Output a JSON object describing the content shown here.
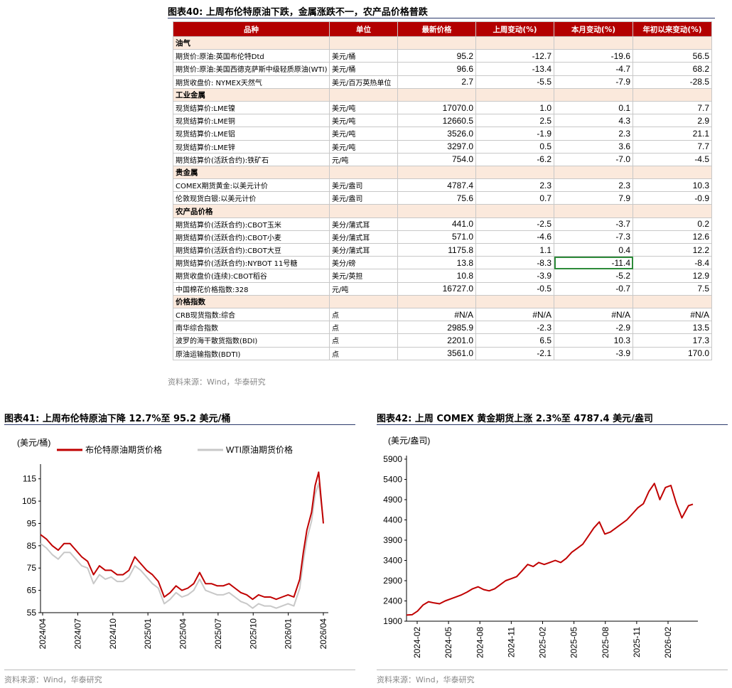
{
  "fig40": {
    "title": "图表40: 上周布伦特原油下跌，金属涨跌不一，农产品价格普跌",
    "headers": [
      "品种",
      "单位",
      "最新价格",
      "上周变动(%)",
      "本月变动(%)",
      "年初以来变动(%)"
    ],
    "sections": [
      {
        "name": "油气",
        "rows": [
          [
            "期货价:原油:英国布伦特Dtd",
            "美元/桶",
            "95.2",
            "-12.7",
            "-19.6",
            "56.5"
          ],
          [
            "期货价:原油:美国西德克萨斯中级轻质原油(WTI)",
            "美元/桶",
            "96.6",
            "-13.4",
            "-4.7",
            "68.2"
          ],
          [
            "期货收盘价: NYMEX天然气",
            "美元/百万英热单位",
            "2.7",
            "-5.5",
            "-7.9",
            "-28.5"
          ]
        ]
      },
      {
        "name": "工业金属",
        "rows": [
          [
            "现货结算价:LME镍",
            "美元/吨",
            "17070.0",
            "1.0",
            "0.1",
            "7.7"
          ],
          [
            "现货结算价:LME铜",
            "美元/吨",
            "12660.5",
            "2.5",
            "4.3",
            "2.9"
          ],
          [
            "现货结算价:LME铝",
            "美元/吨",
            "3526.0",
            "-1.9",
            "2.3",
            "21.1"
          ],
          [
            "现货结算价:LME锌",
            "美元/吨",
            "3297.0",
            "0.5",
            "3.6",
            "7.7"
          ],
          [
            "期货结算价(活跃合约):铁矿石",
            "元/吨",
            "754.0",
            "-6.2",
            "-7.0",
            "-4.5"
          ]
        ]
      },
      {
        "name": "贵金属",
        "rows": [
          [
            "COMEX期货黄金:以美元计价",
            "美元/盎司",
            "4787.4",
            "2.3",
            "2.3",
            "10.3"
          ],
          [
            "伦敦现货白银:以美元计价",
            "美元/盎司",
            "75.6",
            "0.7",
            "7.9",
            "-0.9"
          ]
        ]
      },
      {
        "name": "农产品价格",
        "rows": [
          [
            "期货结算价(活跃合约):CBOT玉米",
            "美分/蒲式耳",
            "441.0",
            "-2.5",
            "-3.7",
            "0.2"
          ],
          [
            "期货结算价(活跃合约):CBOT小麦",
            "美分/蒲式耳",
            "571.0",
            "-4.6",
            "-7.3",
            "12.6"
          ],
          [
            "期货结算价(活跃合约):CBOT大豆",
            "美分/蒲式耳",
            "1175.8",
            "1.1",
            "0.4",
            "12.2"
          ],
          [
            "期货结算价(活跃合约):NYBOT 11号糖",
            "美分/磅",
            "13.8",
            "-8.3",
            "-11.4",
            "-8.4"
          ],
          [
            "期货收盘价(连续):CBOT稻谷",
            "美元/英担",
            "10.8",
            "-3.9",
            "-5.2",
            "12.9"
          ],
          [
            "中国棉花价格指数:328",
            "元/吨",
            "16727.0",
            "-0.5",
            "-0.7",
            "7.5"
          ]
        ]
      },
      {
        "name": "价格指数",
        "rows": [
          [
            "CRB现货指数:综合",
            "点",
            "#N/A",
            "#N/A",
            "#N/A",
            "#N/A"
          ],
          [
            "南华综合指数",
            "点",
            "2985.9",
            "-2.3",
            "-2.9",
            "13.5"
          ],
          [
            "波罗的海干散货指数(BDI)",
            "点",
            "2201.0",
            "6.5",
            "10.3",
            "17.3"
          ],
          [
            "原油运输指数(BDTI)",
            "点",
            "3561.0",
            "-2.1",
            "-3.9",
            "170.0"
          ]
        ]
      }
    ],
    "source": "资料来源：Wind，华泰研究"
  },
  "fig41": {
    "title": "图表41: 上周布伦特原油下降 12.7%至 95.2 美元/桶",
    "source": "资料来源：Wind，华泰研究"
  },
  "fig42": {
    "title": "图表42: 上周 COMEX 黄金期货上涨 2.3%至 4787.4 美元/盎司",
    "source": "资料来源：Wind，华泰研究"
  },
  "chart_data": [
    {
      "type": "line",
      "ylabel": "(美元/桶)",
      "ylim": [
        55,
        120
      ],
      "yticks": [
        55,
        65,
        75,
        85,
        95,
        105,
        115
      ],
      "xticks": [
        "2024/04",
        "2024/07",
        "2024/10",
        "2025/01",
        "2025/04",
        "2025/07",
        "2025/10",
        "2026/01",
        "2026/04"
      ],
      "grid": false,
      "legend": "top",
      "series": [
        {
          "name": "布伦特原油期货价格",
          "color": "#c00000",
          "x": [
            0,
            0.5,
            1,
            1.5,
            2,
            2.5,
            3,
            3.5,
            4,
            4.5,
            5,
            5.5,
            6,
            6.5,
            7,
            7.5,
            8,
            8.5,
            9,
            9.5,
            10,
            10.5,
            11,
            11.5,
            12,
            12.5,
            13,
            13.5,
            14,
            14.5,
            15,
            15.5,
            16,
            16.5,
            17,
            17.5,
            18,
            18.5,
            19,
            19.5,
            20,
            20.5,
            21,
            21.5,
            22,
            22.3,
            22.6,
            23,
            23.3,
            23.6,
            24
          ],
          "y": [
            90,
            88,
            85,
            83,
            86,
            86,
            83,
            80,
            78,
            72,
            76,
            74,
            74,
            72,
            72,
            74,
            80,
            77,
            74,
            72,
            69,
            62,
            64,
            67,
            65,
            66,
            68,
            73,
            68,
            68,
            67,
            67,
            68,
            66,
            64,
            63,
            61,
            63,
            62,
            62,
            61,
            62,
            63,
            62,
            70,
            82,
            92,
            100,
            112,
            118,
            95
          ]
        },
        {
          "name": "WTI原油期货价格",
          "color": "#c8c8c8",
          "x": [
            0,
            0.5,
            1,
            1.5,
            2,
            2.5,
            3,
            3.5,
            4,
            4.5,
            5,
            5.5,
            6,
            6.5,
            7,
            7.5,
            8,
            8.5,
            9,
            9.5,
            10,
            10.5,
            11,
            11.5,
            12,
            12.5,
            13,
            13.5,
            14,
            14.5,
            15,
            15.5,
            16,
            16.5,
            17,
            17.5,
            18,
            18.5,
            19,
            19.5,
            20,
            20.5,
            21,
            21.5,
            22,
            22.3,
            22.6,
            23,
            23.3,
            23.6,
            24
          ],
          "y": [
            86,
            84,
            81,
            79,
            82,
            82,
            79,
            76,
            75,
            68,
            72,
            70,
            71,
            69,
            69,
            71,
            76,
            74,
            71,
            68,
            66,
            59,
            61,
            64,
            62,
            63,
            65,
            70,
            65,
            64,
            63,
            63,
            64,
            62,
            60,
            59,
            57,
            59,
            58,
            58,
            57,
            58,
            59,
            58,
            66,
            78,
            88,
            96,
            108,
            113,
            96.6
          ]
        }
      ]
    },
    {
      "type": "line",
      "ylabel": "(美元/盎司)",
      "ylim": [
        1900,
        5900
      ],
      "yticks": [
        1900,
        2400,
        2900,
        3400,
        3900,
        4400,
        4900,
        5400,
        5900
      ],
      "xticks": [
        "2024-02",
        "2024-05",
        "2024-08",
        "2024-11",
        "2025-02",
        "2025-05",
        "2025-08",
        "2025-11",
        "2026-02"
      ],
      "grid": false,
      "series": [
        {
          "name": "COMEX黄金期货",
          "color": "#c00000",
          "x": [
            0,
            0.5,
            1,
            1.5,
            2,
            2.5,
            3,
            3.5,
            4,
            4.5,
            5,
            5.5,
            6,
            6.5,
            7,
            7.5,
            8,
            8.5,
            9,
            9.5,
            10,
            10.5,
            11,
            11.5,
            12,
            12.5,
            13,
            13.5,
            14,
            14.5,
            15,
            15.5,
            16,
            16.5,
            17,
            17.5,
            18,
            18.5,
            19,
            19.5,
            20,
            20.5,
            21,
            21.5,
            22,
            22.5,
            23,
            23.5,
            24,
            24.5,
            25,
            25.3,
            25.6,
            26
          ],
          "y": [
            2050,
            2060,
            2150,
            2300,
            2380,
            2350,
            2330,
            2400,
            2450,
            2500,
            2550,
            2620,
            2700,
            2750,
            2680,
            2650,
            2700,
            2800,
            2900,
            2950,
            3000,
            3150,
            3300,
            3250,
            3350,
            3300,
            3350,
            3400,
            3350,
            3450,
            3600,
            3700,
            3800,
            4000,
            4200,
            4350,
            4050,
            4100,
            4200,
            4300,
            4400,
            4550,
            4700,
            4800,
            5100,
            5300,
            4900,
            5200,
            5250,
            4800,
            4450,
            4600,
            4750,
            4787.4
          ]
        }
      ]
    }
  ]
}
